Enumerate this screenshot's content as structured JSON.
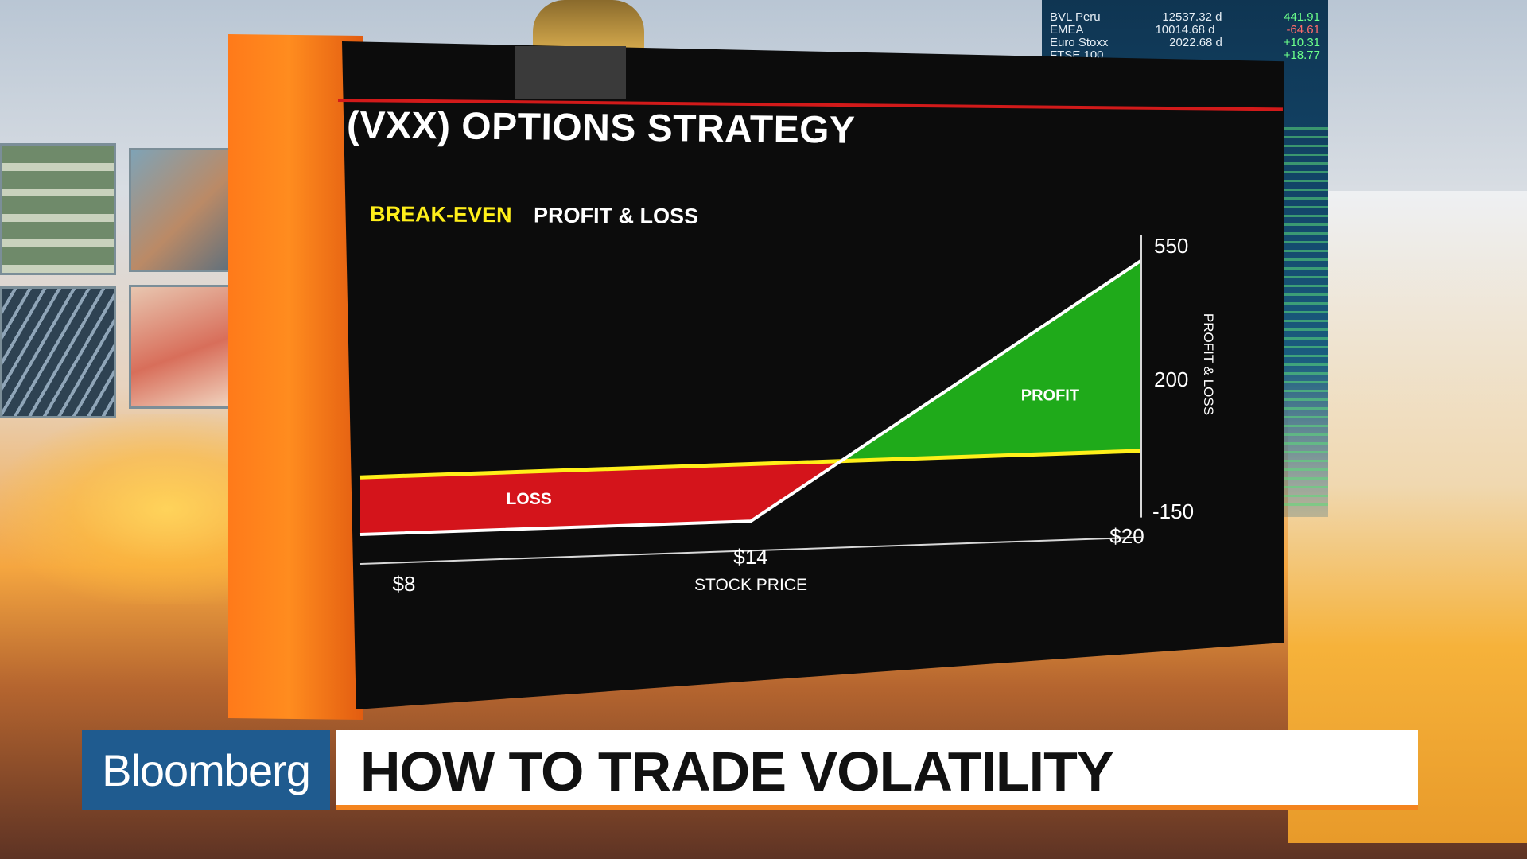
{
  "ticker": [
    {
      "name": "BVL Peru",
      "value": "12537.32 d",
      "change": "441.91",
      "dir": "up"
    },
    {
      "name": "EMEA",
      "value": "10014.68 d",
      "change": "-64.61",
      "dir": "dn"
    },
    {
      "name": "Euro Stoxx",
      "value": "2022.68 d",
      "change": "+10.31",
      "dir": "up"
    },
    {
      "name": "FTSE 100",
      "value": "",
      "change": "+18.77",
      "dir": "up"
    }
  ],
  "graphic": {
    "title": "(VXX) OPTIONS STRATEGY",
    "legend_breakeven": "BREAK-EVEN",
    "legend_pl": "PROFIT & LOSS",
    "loss_label": "LOSS",
    "profit_label": "PROFIT",
    "colors": {
      "breakeven": "#ffef1a",
      "pl_line": "#ffffff",
      "loss": "#d4141b",
      "profit": "#1faa1a",
      "accent_red": "#d21a1a",
      "orange": "#ff7a1a"
    }
  },
  "chart_data": {
    "type": "line",
    "title": "(VXX) OPTIONS STRATEGY",
    "xlabel": "STOCK PRICE",
    "ylabel": "PROFIT & LOSS",
    "x_ticks": [
      "$8",
      "$14",
      "$20"
    ],
    "y_ticks": [
      "550",
      "200",
      "-150"
    ],
    "xlim": [
      8,
      20
    ],
    "ylim": [
      -150,
      550
    ],
    "series": [
      {
        "name": "PROFIT & LOSS",
        "x": [
          8,
          14,
          20
        ],
        "y": [
          -150,
          -150,
          500
        ]
      },
      {
        "name": "BREAK-EVEN",
        "x": [
          8,
          20
        ],
        "y": [
          0,
          0
        ]
      }
    ],
    "regions": [
      {
        "label": "LOSS",
        "x_range": [
          8,
          15.4
        ]
      },
      {
        "label": "PROFIT",
        "x_range": [
          15.4,
          20
        ]
      }
    ]
  },
  "lower_third": {
    "brand": "Bloomberg",
    "headline": "HOW TO TRADE VOLATILITY"
  }
}
